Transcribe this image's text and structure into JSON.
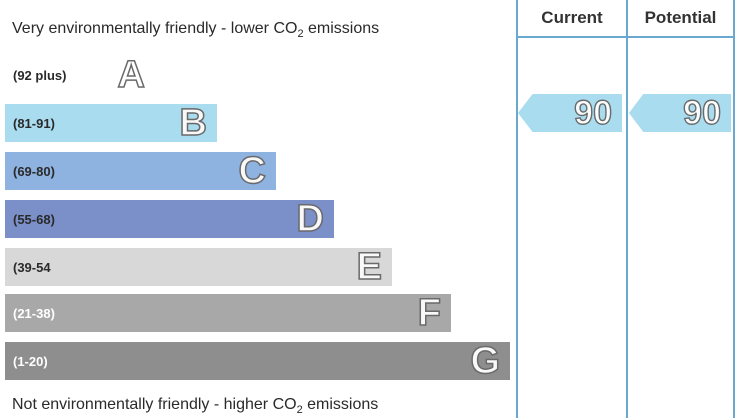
{
  "top_caption": {
    "text": "Very environmentally friendly - lower CO",
    "sub": "2",
    "tail": " emissions"
  },
  "bottom_caption": {
    "text": "Not environmentally friendly - higher CO",
    "sub": "2",
    "tail": " emissions"
  },
  "columns": {
    "current_label": "Current",
    "potential_label": "Potential"
  },
  "bands": [
    {
      "letter": "A",
      "range": "(92 plus)",
      "color": "#ffffff"
    },
    {
      "letter": "B",
      "range": "(81-91)",
      "color": "#a9dcef"
    },
    {
      "letter": "C",
      "range": "(69-80)",
      "color": "#8fb3e0"
    },
    {
      "letter": "D",
      "range": "(55-68)",
      "color": "#7b8fc8"
    },
    {
      "letter": "E",
      "range": "(39-54",
      "color": "#d8d8d8"
    },
    {
      "letter": "F",
      "range": "(21-38)",
      "color": "#a8a8a8"
    },
    {
      "letter": "G",
      "range": "(1-20)",
      "color": "#8e8e8e"
    }
  ],
  "ratings": {
    "current": {
      "value": "90",
      "band": "B",
      "color": "#a9dcef"
    },
    "potential": {
      "value": "90",
      "band": "B",
      "color": "#a9dcef"
    }
  },
  "colors": {
    "divider": "#6aa9cf"
  }
}
